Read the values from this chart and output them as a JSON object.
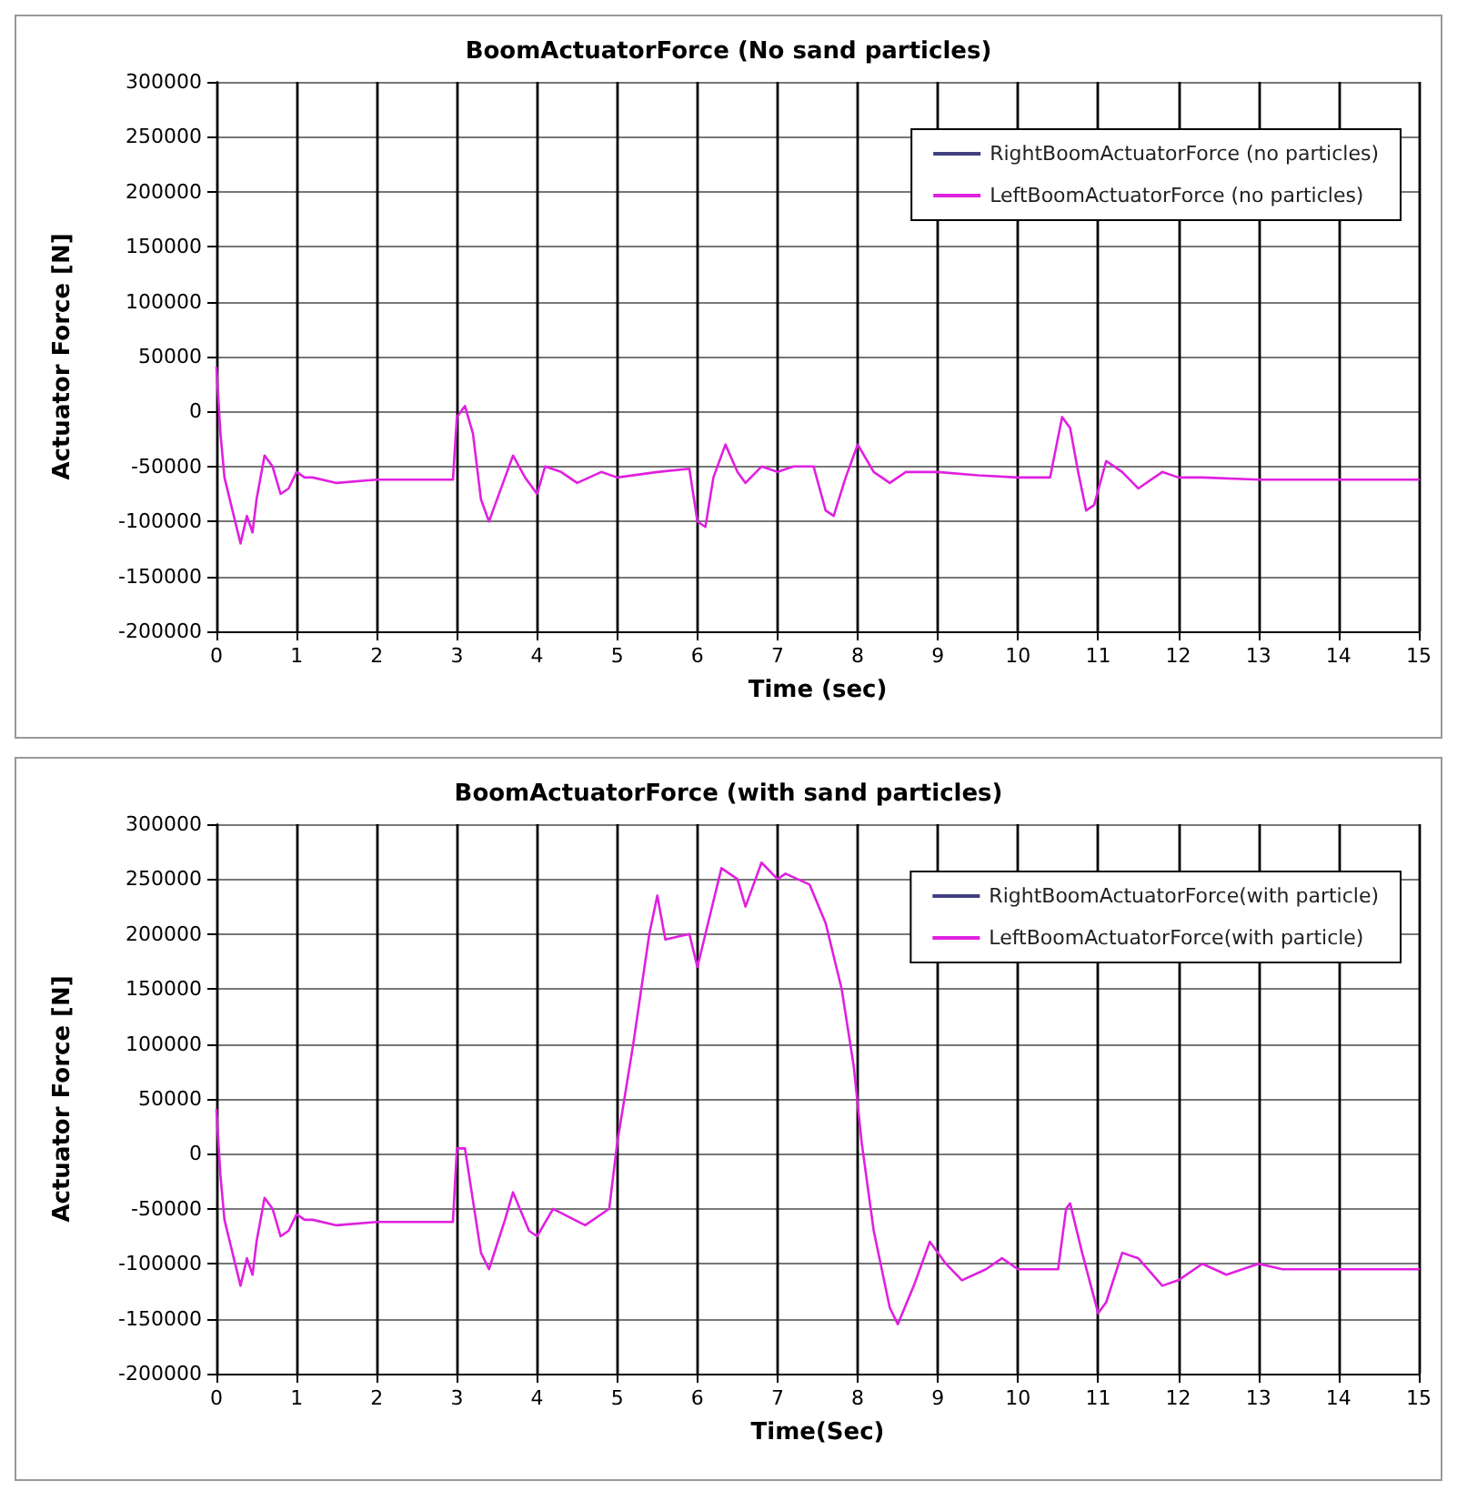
{
  "chart_data": [
    {
      "type": "line",
      "title": "BoomActuatorForce (No sand particles)",
      "xlabel": "Time (sec)",
      "ylabel": "Actuator Force [N]",
      "xlim": [
        0,
        15
      ],
      "xticks": [
        0,
        1,
        2,
        3,
        4,
        5,
        6,
        7,
        8,
        9,
        10,
        11,
        12,
        13,
        14,
        15
      ],
      "ylim": [
        -200000,
        300000
      ],
      "yticks": [
        -200000,
        -150000,
        -100000,
        -50000,
        0,
        50000,
        100000,
        150000,
        200000,
        250000,
        300000
      ],
      "grid": true,
      "legend": "top right",
      "series": [
        {
          "name": "RightBoomActuatorForce (no particles)",
          "color": "#404080"
        },
        {
          "name": "LeftBoomActuatorForce (no particles)",
          "color": "#e020e0",
          "x": [
            0,
            0.05,
            0.1,
            0.2,
            0.3,
            0.38,
            0.45,
            0.5,
            0.6,
            0.7,
            0.8,
            0.9,
            1.0,
            1.1,
            1.2,
            1.5,
            2,
            2.5,
            2.95,
            3.0,
            3.1,
            3.2,
            3.3,
            3.4,
            3.6,
            3.7,
            3.85,
            4.0,
            4.1,
            4.3,
            4.5,
            4.8,
            5.0,
            5.5,
            5.9,
            6.0,
            6.1,
            6.2,
            6.35,
            6.5,
            6.6,
            6.8,
            7.0,
            7.2,
            7.45,
            7.6,
            7.7,
            7.85,
            8.0,
            8.2,
            8.4,
            8.6,
            9,
            9.5,
            10,
            10.4,
            10.55,
            10.65,
            10.75,
            10.85,
            10.95,
            11.1,
            11.3,
            11.5,
            11.8,
            12,
            12.3,
            13,
            15
          ],
          "values": [
            40000,
            -20000,
            -60000,
            -90000,
            -120000,
            -95000,
            -110000,
            -80000,
            -40000,
            -50000,
            -75000,
            -70000,
            -55000,
            -60000,
            -60000,
            -65000,
            -62000,
            -62000,
            -62000,
            -5000,
            5000,
            -20000,
            -80000,
            -100000,
            -60000,
            -40000,
            -60000,
            -75000,
            -50000,
            -55000,
            -65000,
            -55000,
            -60000,
            -55000,
            -52000,
            -100000,
            -105000,
            -60000,
            -30000,
            -55000,
            -65000,
            -50000,
            -55000,
            -50000,
            -50000,
            -90000,
            -95000,
            -60000,
            -30000,
            -55000,
            -65000,
            -55000,
            -55000,
            -58000,
            -60000,
            -60000,
            -5000,
            -15000,
            -55000,
            -90000,
            -85000,
            -45000,
            -55000,
            -70000,
            -55000,
            -60000,
            -60000,
            -62000,
            -62000
          ]
        }
      ]
    },
    {
      "type": "line",
      "title": "BoomActuatorForce (with sand particles)",
      "xlabel": "Time(Sec)",
      "ylabel": "Actuator Force [N]",
      "xlim": [
        0,
        15
      ],
      "xticks": [
        0,
        1,
        2,
        3,
        4,
        5,
        6,
        7,
        8,
        9,
        10,
        11,
        12,
        13,
        14,
        15
      ],
      "ylim": [
        -200000,
        300000
      ],
      "yticks": [
        -200000,
        -150000,
        -100000,
        -50000,
        0,
        50000,
        100000,
        150000,
        200000,
        250000,
        300000
      ],
      "grid": true,
      "legend": "top right",
      "series": [
        {
          "name": "RightBoomActuatorForce(with particle)",
          "color": "#404080"
        },
        {
          "name": "LeftBoomActuatorForce(with particle)",
          "color": "#e020e0",
          "x": [
            0,
            0.05,
            0.1,
            0.2,
            0.3,
            0.38,
            0.45,
            0.5,
            0.6,
            0.7,
            0.8,
            0.9,
            1.0,
            1.1,
            1.2,
            1.5,
            2,
            2.5,
            2.95,
            3.0,
            3.1,
            3.3,
            3.4,
            3.6,
            3.7,
            3.9,
            4.0,
            4.2,
            4.6,
            4.9,
            5.0,
            5.2,
            5.4,
            5.5,
            5.6,
            5.9,
            6.0,
            6.1,
            6.3,
            6.5,
            6.6,
            6.8,
            7.0,
            7.1,
            7.4,
            7.6,
            7.8,
            7.95,
            8.05,
            8.2,
            8.4,
            8.5,
            8.7,
            8.9,
            9.1,
            9.3,
            9.6,
            9.8,
            10,
            10.3,
            10.5,
            10.6,
            10.65,
            10.8,
            11,
            11.1,
            11.3,
            11.5,
            11.8,
            12,
            12.3,
            12.6,
            13,
            13.3,
            14,
            15
          ],
          "values": [
            40000,
            -20000,
            -60000,
            -90000,
            -120000,
            -95000,
            -110000,
            -80000,
            -40000,
            -50000,
            -75000,
            -70000,
            -55000,
            -60000,
            -60000,
            -65000,
            -62000,
            -62000,
            -62000,
            5000,
            5000,
            -90000,
            -105000,
            -60000,
            -35000,
            -70000,
            -75000,
            -50000,
            -65000,
            -50000,
            10000,
            100000,
            200000,
            235000,
            195000,
            200000,
            170000,
            200000,
            260000,
            250000,
            225000,
            265000,
            250000,
            255000,
            245000,
            210000,
            150000,
            80000,
            10000,
            -70000,
            -140000,
            -155000,
            -120000,
            -80000,
            -100000,
            -115000,
            -105000,
            -95000,
            -105000,
            -105000,
            -105000,
            -50000,
            -45000,
            -90000,
            -145000,
            -135000,
            -90000,
            -95000,
            -120000,
            -115000,
            -100000,
            -110000,
            -100000,
            -105000,
            -105000,
            -105000
          ]
        }
      ]
    }
  ]
}
